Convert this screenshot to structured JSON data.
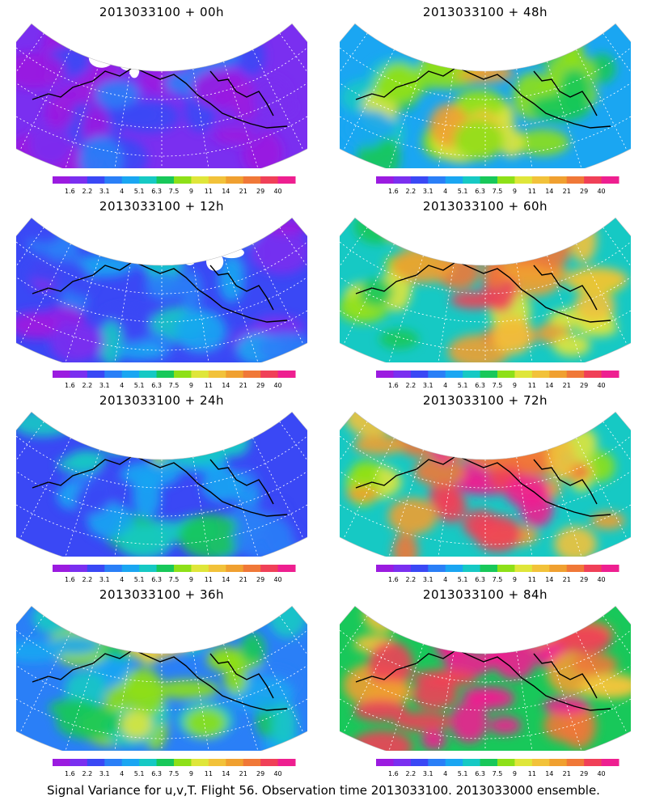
{
  "panels": [
    {
      "title": "2013033100 + 00h",
      "lead_hours": 0
    },
    {
      "title": "2013033100 + 48h",
      "lead_hours": 48
    },
    {
      "title": "2013033100 + 12h",
      "lead_hours": 12
    },
    {
      "title": "2013033100 + 60h",
      "lead_hours": 60
    },
    {
      "title": "2013033100 + 24h",
      "lead_hours": 24
    },
    {
      "title": "2013033100 + 72h",
      "lead_hours": 72
    },
    {
      "title": "2013033100 + 36h",
      "lead_hours": 36
    },
    {
      "title": "2013033100 + 84h",
      "lead_hours": 84
    }
  ],
  "colorbar": {
    "labels": [
      "1.6",
      "2.2",
      "3.1",
      "4",
      "5.1",
      "6.3",
      "7.5",
      "9",
      "11",
      "14",
      "21",
      "29",
      "40"
    ],
    "colors": [
      "#9b1be0",
      "#7a2ff0",
      "#3a48f5",
      "#2a7ff7",
      "#1aa6f2",
      "#16c9c4",
      "#18c85a",
      "#8ee018",
      "#dfe63a",
      "#f2c23a",
      "#f0a030",
      "#f07838",
      "#f04058",
      "#ee1f90"
    ]
  },
  "caption": "Signal Variance for u,v,T. Flight 56. Observation time 2013033100. 2013033000 ensemble."
}
